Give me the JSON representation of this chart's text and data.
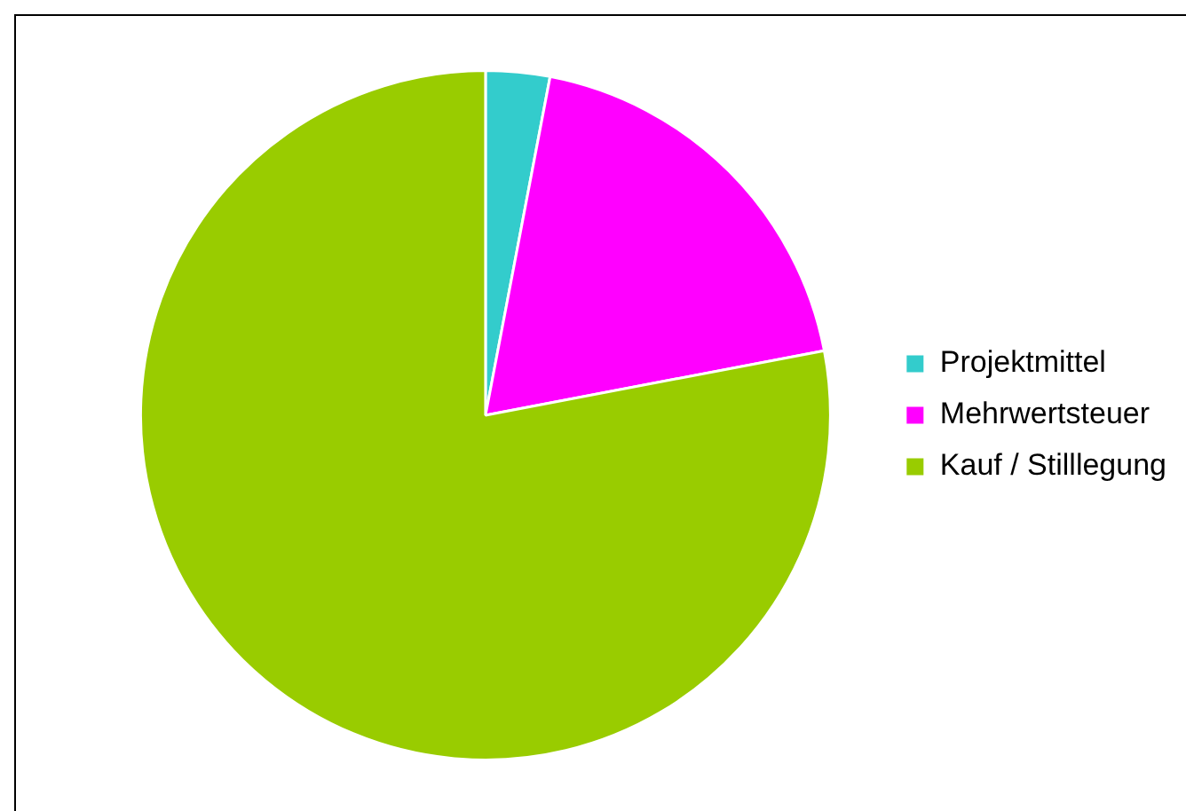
{
  "chart_data": {
    "type": "pie",
    "categories": [
      "Projektmittel",
      "Mehrwertsteuer",
      "Kauf / Stilllegung"
    ],
    "values": [
      3,
      19,
      78
    ],
    "colors": [
      "#33cccc",
      "#ff00ff",
      "#99cc00"
    ],
    "legend": "right"
  }
}
